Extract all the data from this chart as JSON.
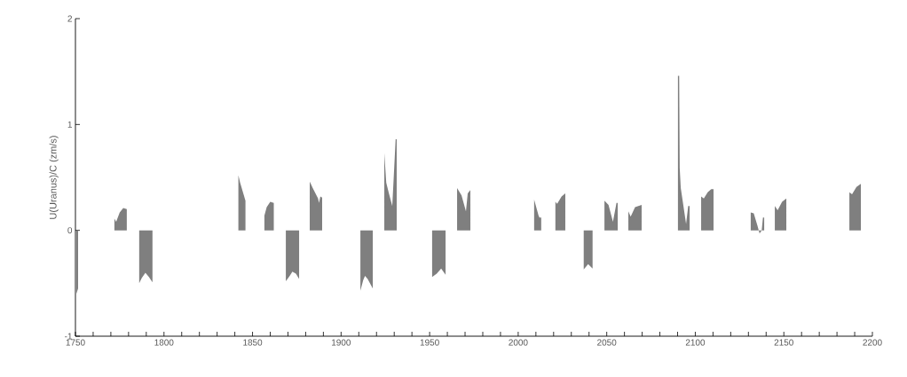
{
  "chart_data": {
    "type": "area",
    "ylabel": "U(Uranus)/C (zm/s)",
    "x": [
      1750.5,
      1751.5,
      1762,
      1772,
      1773,
      1775,
      1777,
      1779,
      1782,
      1786,
      1787.5,
      1789.5,
      1791.5,
      1793.5,
      1818,
      1842,
      1843,
      1846,
      1851,
      1856.7,
      1858,
      1860,
      1862,
      1865,
      1868.8,
      1871,
      1872.5,
      1874.5,
      1876.3,
      1879,
      1882.3,
      1884,
      1887,
      1887.5,
      1888.3,
      1889.3,
      1900,
      1910.9,
      1912.5,
      1913.5,
      1915,
      1917.9,
      1921,
      1924.4,
      1925.5,
      1927,
      1928.9,
      1930.8,
      1931.4,
      1941,
      1951.4,
      1954,
      1956.5,
      1959,
      1962,
      1965.5,
      1968,
      1970.5,
      1971.5,
      1973,
      1990,
      2009,
      2011.5,
      2012,
      2013,
      2017,
      2021,
      2022,
      2024.5,
      2026.6,
      2032,
      2037,
      2039.5,
      2042,
      2045,
      2048.7,
      2051,
      2053.5,
      2055.5,
      2056.2,
      2059,
      2062.2,
      2063.5,
      2066,
      2069.7,
      2080,
      2090.2,
      2090.9,
      2091.2,
      2091.8,
      2094.8,
      2096,
      2096.8,
      2100,
      2103.3,
      2104.8,
      2107,
      2109,
      2110.3,
      2120,
      2131.3,
      2133,
      2135,
      2136.3,
      2137.5,
      2138.2,
      2138.9,
      2142,
      2144.9,
      2146.5,
      2149,
      2151.4,
      2170,
      2187,
      2188.5,
      2191,
      2193.5
    ],
    "values": [
      -0.6,
      -0.55,
      null,
      0.11,
      0.08,
      0.17,
      0.21,
      0.2,
      null,
      -0.5,
      -0.45,
      -0.4,
      -0.44,
      -0.49,
      null,
      0.52,
      0.45,
      0.28,
      null,
      0.14,
      0.22,
      0.27,
      0.26,
      null,
      -0.48,
      -0.43,
      -0.39,
      -0.41,
      -0.46,
      null,
      0.46,
      0.4,
      0.3,
      0.26,
      0.32,
      0.31,
      null,
      -0.57,
      -0.47,
      -0.43,
      -0.46,
      -0.55,
      null,
      0.73,
      0.45,
      0.35,
      0.23,
      0.86,
      0.86,
      null,
      -0.44,
      -0.41,
      -0.36,
      -0.42,
      null,
      0.4,
      0.33,
      0.18,
      0.35,
      0.38,
      null,
      0.29,
      0.14,
      0.12,
      0.12,
      null,
      0.27,
      0.25,
      0.32,
      0.35,
      null,
      -0.37,
      -0.32,
      -0.36,
      null,
      0.28,
      0.24,
      0.08,
      0.26,
      0.26,
      null,
      0.18,
      0.13,
      0.22,
      0.24,
      null,
      1.46,
      1.46,
      0.59,
      0.4,
      0.06,
      0.23,
      0.23,
      null,
      0.32,
      0.3,
      0.36,
      0.39,
      0.39,
      null,
      0.17,
      0.16,
      0.05,
      -0.03,
      0.0,
      0.12,
      0.12,
      null,
      0.23,
      0.19,
      0.27,
      0.3,
      null,
      0.36,
      0.34,
      0.41,
      0.44
    ],
    "color": "#7f7f7f",
    "xlim": [
      1750,
      2200
    ],
    "xticks": [
      1750,
      {
        "value": 1760,
        "label": null
      },
      {
        "value": 1770,
        "label": null
      },
      {
        "value": 1780,
        "label": null
      },
      {
        "value": 1790,
        "label": null
      },
      1800,
      {
        "value": 1810,
        "label": null
      },
      {
        "value": 1820,
        "label": null
      },
      {
        "value": 1830,
        "label": null
      },
      {
        "value": 1840,
        "label": null
      },
      1850,
      {
        "value": 1860,
        "label": null
      },
      {
        "value": 1870,
        "label": null
      },
      {
        "value": 1880,
        "label": null
      },
      {
        "value": 1890,
        "label": null
      },
      1900,
      {
        "value": 1910,
        "label": null
      },
      {
        "value": 1920,
        "label": null
      },
      {
        "value": 1930,
        "label": null
      },
      {
        "value": 1940,
        "label": null
      },
      1950,
      {
        "value": 1960,
        "label": null
      },
      {
        "value": 1970,
        "label": null
      },
      {
        "value": 1980,
        "label": null
      },
      {
        "value": 1990,
        "label": null
      },
      2000,
      {
        "value": 2010,
        "label": null
      },
      {
        "value": 2020,
        "label": null
      },
      {
        "value": 2030,
        "label": null
      },
      {
        "value": 2040,
        "label": null
      },
      2050,
      {
        "value": 2060,
        "label": null
      },
      {
        "value": 2070,
        "label": null
      },
      {
        "value": 2080,
        "label": null
      },
      {
        "value": 2090,
        "label": null
      },
      2100,
      {
        "value": 2110,
        "label": null
      },
      {
        "value": 2120,
        "label": null
      },
      {
        "value": 2130,
        "label": null
      },
      {
        "value": 2140,
        "label": null
      },
      2150,
      {
        "value": 2160,
        "label": null
      },
      {
        "value": 2170,
        "label": null
      },
      {
        "value": 2180,
        "label": null
      },
      {
        "value": 2190,
        "label": null
      },
      2200
    ],
    "ylim": [
      -1,
      2
    ],
    "yticks": [
      -1,
      0,
      1,
      2
    ]
  }
}
